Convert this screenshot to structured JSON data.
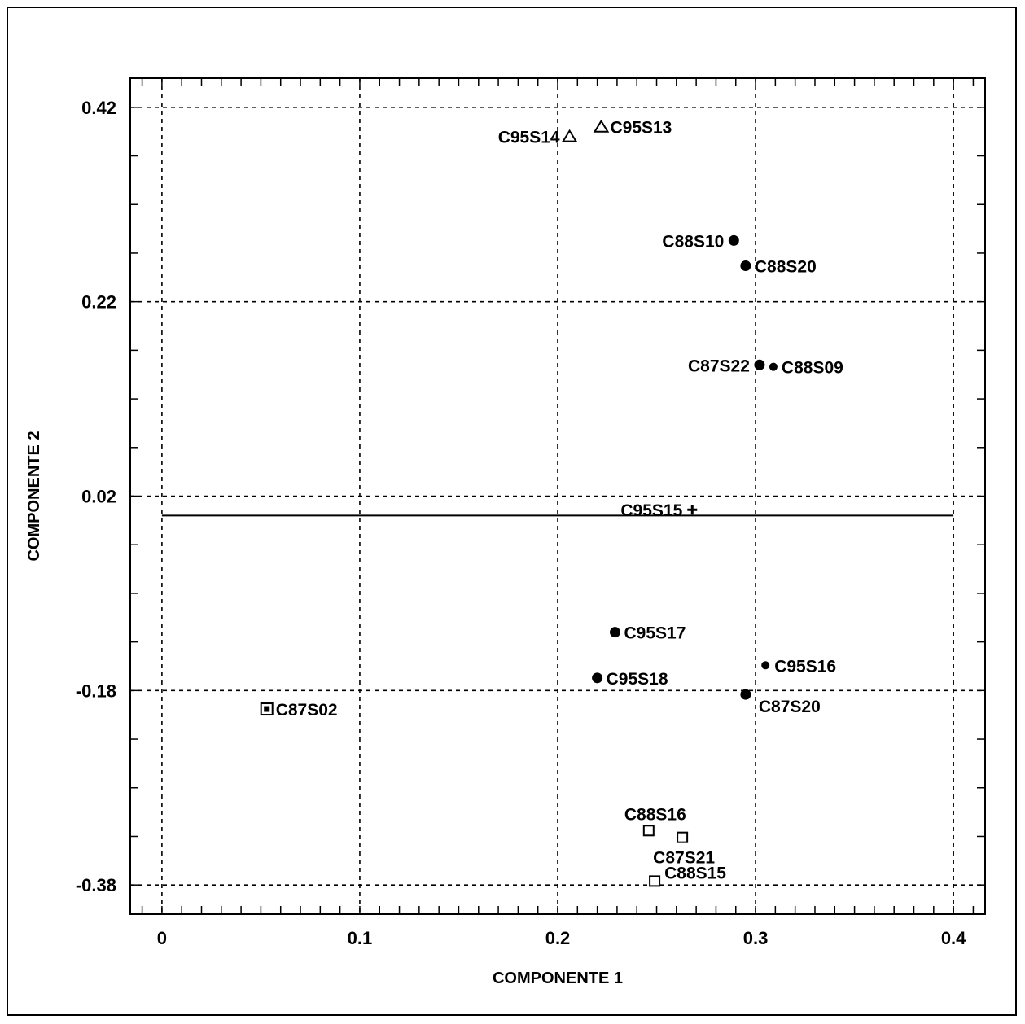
{
  "chart_data": {
    "type": "scatter",
    "title": "",
    "xlabel": "COMPONENTE 1",
    "ylabel": "COMPONENTE 2",
    "xlim": [
      -0.016,
      0.416
    ],
    "ylim": [
      -0.41,
      0.45
    ],
    "xticks": [
      0,
      0.1,
      0.2,
      0.3,
      0.4
    ],
    "xtick_labels": [
      "0",
      "0.1",
      "0.2",
      "0.3",
      "0.4"
    ],
    "yticks": [
      0.42,
      0.22,
      0.02,
      -0.18,
      -0.38
    ],
    "ytick_labels": [
      "0.42",
      "0.22",
      "0.02",
      "-0.18",
      "-0.38"
    ],
    "grid": true,
    "reference_line_y": 0.0,
    "points": [
      {
        "label": "C95S14",
        "x": 0.206,
        "y": 0.39,
        "marker": "triangle",
        "label_side": "left"
      },
      {
        "label": "C95S13",
        "x": 0.222,
        "y": 0.4,
        "marker": "triangle",
        "label_side": "right"
      },
      {
        "label": "C88S10",
        "x": 0.289,
        "y": 0.283,
        "marker": "dot",
        "label_side": "left"
      },
      {
        "label": "C88S20",
        "x": 0.295,
        "y": 0.257,
        "marker": "dot",
        "label_side": "right"
      },
      {
        "label": "C87S22",
        "x": 0.302,
        "y": 0.155,
        "marker": "dot",
        "label_side": "left"
      },
      {
        "label": "C88S09",
        "x": 0.309,
        "y": 0.153,
        "marker": "dot-small",
        "label_side": "right"
      },
      {
        "label": "C95S15",
        "x": 0.268,
        "y": 0.006,
        "marker": "plus",
        "label_side": "left"
      },
      {
        "label": "C95S17",
        "x": 0.229,
        "y": -0.12,
        "marker": "dot",
        "label_side": "right"
      },
      {
        "label": "C95S16",
        "x": 0.305,
        "y": -0.154,
        "marker": "dot-small",
        "label_side": "right"
      },
      {
        "label": "C95S18",
        "x": 0.22,
        "y": -0.167,
        "marker": "dot",
        "label_side": "right"
      },
      {
        "label": "C87S20",
        "x": 0.295,
        "y": -0.184,
        "marker": "dot",
        "label_side": "below-right"
      },
      {
        "label": "C87S02",
        "x": 0.053,
        "y": -0.199,
        "marker": "square-filled",
        "label_side": "right"
      },
      {
        "label": "C88S16",
        "x": 0.246,
        "y": -0.324,
        "marker": "square",
        "label_side": "above"
      },
      {
        "label": "C87S21",
        "x": 0.263,
        "y": -0.331,
        "marker": "square",
        "label_side": "below"
      },
      {
        "label": "C88S15",
        "x": 0.249,
        "y": -0.376,
        "marker": "square",
        "label_side": "above-right"
      }
    ]
  }
}
